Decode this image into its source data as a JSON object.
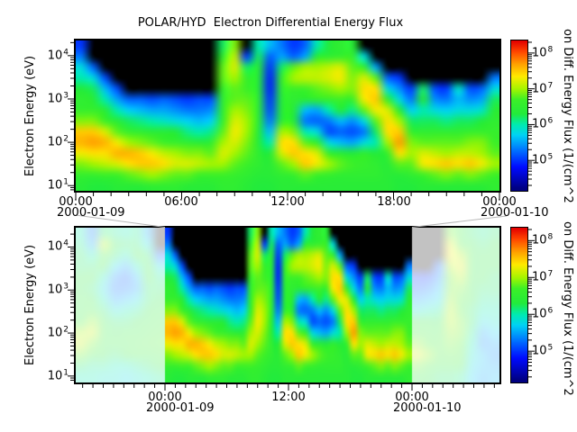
{
  "title": "POLAR/HYD  Electron Differential Energy Flux",
  "axes": {
    "y_label": "Electron Energy (eV)",
    "y_tick_base": "10",
    "y_tick_exponents": [
      "4",
      "3",
      "2",
      "1"
    ],
    "top_x_ticks": [
      "00:00",
      "06:00",
      "12:00",
      "18:00",
      "00:00"
    ],
    "top_x_dates": {
      "left": "2000-01-09",
      "right": "2000-01-10"
    },
    "bottom_x_ticks": [
      "00:00",
      "12:00",
      "00:00"
    ],
    "bottom_x_dates": {
      "left": "2000-01-09",
      "right": "2000-01-10"
    }
  },
  "colorbar": {
    "label": "on Diff. Energy Flux (1/(cm^2",
    "tick_base": "10",
    "tick_exponents": [
      "8",
      "7",
      "6",
      "5"
    ]
  },
  "chart_data": {
    "type": "heatmap",
    "title": "POLAR/HYD  Electron Differential Energy Flux",
    "ylabel": "Electron Energy (eV)",
    "colorbar_label": "on Diff. Energy Flux (1/(cm^2",
    "colorbar_tick_values_log10": [
      8,
      7,
      6,
      5
    ],
    "y_scale": "log",
    "y_tick_values_log10": [
      4,
      3,
      2,
      1
    ],
    "flux_log10_range": [
      4.15,
      8.35
    ],
    "black_below_log10_flux": 4.2,
    "colormap_stops_v_r_g_b": [
      [
        4.2,
        0,
        0,
        130
      ],
      [
        4.8,
        0,
        10,
        255
      ],
      [
        5.3,
        0,
        120,
        255
      ],
      [
        5.7,
        0,
        210,
        245
      ],
      [
        6.0,
        0,
        235,
        175
      ],
      [
        6.3,
        35,
        235,
        60
      ],
      [
        6.7,
        60,
        240,
        40
      ],
      [
        7.0,
        165,
        245,
        0
      ],
      [
        7.35,
        255,
        235,
        0
      ],
      [
        7.7,
        255,
        160,
        0
      ],
      [
        8.05,
        255,
        70,
        0
      ],
      [
        8.35,
        228,
        0,
        0
      ]
    ],
    "energy_log10_rows_top_to_bottom": [
      4.3,
      4.05,
      3.8,
      3.55,
      3.3,
      3.05,
      2.8,
      2.55,
      2.3,
      2.05,
      1.8,
      1.55,
      1.3,
      1.05
    ],
    "panels": {
      "top": {
        "time_range_hours_from_2000_01_09_00": [
          0,
          24
        ],
        "x_tick_labels": [
          "00:00",
          "06:00",
          "12:00",
          "18:00",
          "00:00"
        ],
        "x_dates": [
          "2000-01-09",
          "2000-01-10"
        ],
        "energy_log10_range": [
          0.88,
          4.35
        ],
        "grid_columns_log10_flux": [
          [
            5.0,
            5.3,
            5.8,
            6.0,
            6.3,
            6.5,
            6.6,
            6.9,
            7.5,
            7.6,
            7.3,
            6.9,
            6.6,
            6.4
          ],
          [
            0,
            0,
            5.2,
            5.8,
            6.2,
            6.4,
            6.6,
            6.9,
            7.5,
            7.7,
            7.4,
            7.0,
            6.6,
            6.3
          ],
          [
            0,
            0,
            0,
            5.1,
            5.6,
            6.0,
            6.4,
            6.7,
            7.2,
            7.6,
            7.4,
            7.1,
            6.7,
            6.3
          ],
          [
            0,
            0,
            0,
            0,
            5.1,
            5.5,
            6.0,
            6.4,
            6.8,
            7.3,
            7.6,
            7.2,
            6.7,
            6.4
          ],
          [
            0,
            0,
            0,
            0,
            0,
            5.2,
            5.7,
            6.2,
            6.6,
            7.0,
            7.6,
            7.4,
            6.8,
            6.4
          ],
          [
            0,
            0,
            0,
            0,
            0,
            5.2,
            5.6,
            6.1,
            6.5,
            6.9,
            7.5,
            7.5,
            6.9,
            6.4
          ],
          [
            0,
            0,
            0,
            0,
            0,
            5.1,
            5.5,
            6.0,
            6.4,
            6.8,
            7.3,
            7.5,
            7.0,
            6.5
          ],
          [
            0,
            0,
            0,
            0,
            0,
            5.2,
            5.5,
            5.9,
            6.4,
            6.7,
            7.1,
            7.4,
            6.9,
            6.5
          ],
          [
            0,
            0,
            0,
            0,
            0,
            5.1,
            5.4,
            5.8,
            6.3,
            6.6,
            7.0,
            7.2,
            6.8,
            6.5
          ],
          [
            0,
            0,
            0,
            0,
            0,
            5.0,
            5.3,
            5.7,
            6.1,
            6.5,
            6.9,
            7.2,
            6.8,
            6.4
          ],
          [
            0,
            0,
            0,
            0,
            0,
            5.1,
            5.3,
            5.6,
            6.0,
            6.4,
            6.9,
            7.1,
            6.7,
            6.4
          ],
          [
            0,
            0,
            0,
            0,
            0,
            5.1,
            5.4,
            5.7,
            6.1,
            6.5,
            6.8,
            7.0,
            6.7,
            6.4
          ],
          [
            6.2,
            6.5,
            6.8,
            6.8,
            6.6,
            6.5,
            6.5,
            6.6,
            6.8,
            7.0,
            7.2,
            7.0,
            6.7,
            6.5
          ],
          [
            6.9,
            7.1,
            7.2,
            7.0,
            6.8,
            6.8,
            7.0,
            7.2,
            7.3,
            7.2,
            7.0,
            6.8,
            6.6,
            6.5
          ],
          [
            0,
            5.0,
            6.2,
            6.6,
            6.7,
            6.8,
            6.9,
            7.0,
            7.0,
            6.9,
            6.8,
            6.7,
            6.5,
            6.4
          ],
          [
            6.0,
            6.2,
            6.4,
            6.4,
            6.4,
            6.5,
            6.5,
            6.5,
            6.4,
            6.4,
            6.5,
            6.5,
            6.4,
            6.3
          ],
          [
            5.6,
            5.2,
            5.0,
            4.9,
            4.9,
            5.0,
            5.1,
            5.3,
            5.6,
            6.0,
            6.3,
            6.4,
            6.4,
            6.3
          ],
          [
            5.3,
            5.5,
            6.2,
            6.6,
            6.5,
            6.4,
            6.4,
            6.5,
            7.0,
            7.4,
            7.2,
            6.8,
            6.5,
            6.4
          ],
          [
            5.0,
            5.2,
            6.8,
            7.0,
            6.7,
            6.5,
            6.4,
            6.4,
            6.9,
            7.4,
            7.5,
            7.0,
            6.6,
            6.4
          ],
          [
            5.2,
            5.5,
            7.0,
            7.1,
            6.7,
            6.4,
            5.6,
            5.3,
            6.0,
            6.8,
            7.4,
            7.5,
            6.8,
            6.4
          ],
          [
            6.0,
            6.4,
            7.0,
            7.1,
            6.8,
            6.5,
            5.5,
            5.2,
            5.8,
            6.5,
            7.2,
            7.3,
            6.7,
            6.4
          ],
          [
            6.3,
            6.5,
            7.1,
            7.2,
            6.9,
            6.6,
            6.0,
            5.3,
            5.1,
            5.8,
            6.6,
            7.0,
            6.6,
            6.4
          ],
          [
            6.5,
            6.6,
            7.2,
            7.3,
            7.0,
            6.7,
            6.3,
            5.6,
            5.2,
            5.6,
            6.4,
            6.8,
            6.5,
            6.4
          ],
          [
            6.4,
            6.6,
            6.8,
            6.9,
            6.9,
            6.6,
            6.1,
            5.4,
            5.1,
            5.5,
            6.3,
            6.7,
            6.5,
            6.4
          ],
          [
            0,
            5.8,
            6.6,
            7.2,
            7.4,
            7.3,
            6.8,
            5.8,
            5.3,
            5.8,
            6.5,
            6.6,
            6.5,
            6.4
          ],
          [
            0,
            0,
            5.5,
            6.8,
            7.4,
            7.5,
            7.3,
            6.8,
            6.2,
            6.0,
            6.3,
            6.5,
            6.5,
            6.4
          ],
          [
            0,
            0,
            0,
            5.2,
            5.8,
            6.6,
            7.2,
            7.4,
            7.4,
            7.0,
            6.6,
            6.4,
            6.4,
            6.4
          ],
          [
            0,
            0,
            0,
            5.0,
            5.4,
            5.8,
            6.4,
            7.0,
            7.5,
            7.7,
            7.4,
            6.8,
            6.4,
            6.3
          ],
          [
            0,
            0,
            0,
            0,
            5.0,
            5.3,
            5.7,
            6.2,
            6.6,
            6.9,
            7.0,
            6.8,
            6.5,
            6.3
          ],
          [
            0,
            0,
            0,
            0,
            6.2,
            6.3,
            6.0,
            6.2,
            6.5,
            6.8,
            7.2,
            7.3,
            6.7,
            6.4
          ],
          [
            0,
            0,
            0,
            0,
            5.1,
            5.4,
            5.8,
            6.2,
            6.5,
            6.8,
            7.1,
            7.4,
            6.8,
            6.4
          ],
          [
            0,
            0,
            0,
            0,
            5.0,
            5.3,
            5.7,
            6.1,
            6.5,
            6.8,
            7.0,
            7.5,
            6.9,
            6.4
          ],
          [
            0,
            0,
            0,
            0,
            5.9,
            5.6,
            5.8,
            6.2,
            6.5,
            6.8,
            7.1,
            7.4,
            6.8,
            6.4
          ],
          [
            0,
            0,
            0,
            0,
            5.1,
            5.4,
            5.8,
            6.2,
            6.6,
            6.9,
            7.1,
            7.5,
            6.9,
            6.4
          ],
          [
            0,
            0,
            0,
            0,
            5.2,
            5.5,
            5.9,
            6.3,
            6.6,
            6.9,
            7.0,
            7.3,
            6.8,
            6.4
          ],
          [
            0,
            0,
            0,
            5.3,
            5.8,
            6.2,
            6.4,
            6.5,
            6.6,
            6.7,
            6.8,
            7.0,
            6.7,
            6.5
          ]
        ]
      },
      "bottom": {
        "time_range_hours_from_2000_01_09_00": [
          -8.7,
          32.5
        ],
        "x_tick_labels": [
          "00:00",
          "12:00",
          "00:00"
        ],
        "x_dates": [
          "2000-01-09",
          "2000-01-10"
        ],
        "energy_log10_range": [
          0.85,
          4.45
        ],
        "highlight_range_hours": [
          0,
          24
        ],
        "faded_overlay_outside_highlight": "rgba(255,255,255,0.76)",
        "middle_section_data": "same as top panel grid, compressed",
        "left_section_grid_columns_log10_flux": [
          [
            6.0,
            6.1,
            6.2,
            6.2,
            6.3,
            6.3,
            6.4,
            6.4,
            6.6,
            7.0,
            7.1,
            6.8,
            6.2,
            6.0
          ],
          [
            5.3,
            5.5,
            6.0,
            6.2,
            6.3,
            6.2,
            6.3,
            6.5,
            6.9,
            7.1,
            6.8,
            6.4,
            6.1,
            6.0
          ],
          [
            6.2,
            7.0,
            6.6,
            6.3,
            6.0,
            5.8,
            6.0,
            6.2,
            6.4,
            6.5,
            6.4,
            6.3,
            6.1,
            5.9
          ],
          [
            6.1,
            6.3,
            6.2,
            5.8,
            5.4,
            5.3,
            5.5,
            5.9,
            6.2,
            6.3,
            6.4,
            6.2,
            6.0,
            5.9
          ],
          [
            6.0,
            6.2,
            6.0,
            5.5,
            5.2,
            5.3,
            5.6,
            6.0,
            6.2,
            6.4,
            6.4,
            6.3,
            6.0,
            5.8
          ],
          [
            6.1,
            6.2,
            6.3,
            6.0,
            5.6,
            5.5,
            5.8,
            6.1,
            6.3,
            6.4,
            6.5,
            6.4,
            6.1,
            5.9
          ],
          [
            5.5,
            5.8,
            6.2,
            6.3,
            6.3,
            6.2,
            6.2,
            6.3,
            6.4,
            6.5,
            6.6,
            6.4,
            6.2,
            6.0
          ],
          [
            0,
            0,
            5.2,
            5.8,
            6.1,
            6.2,
            6.3,
            6.4,
            6.5,
            6.6,
            6.7,
            6.5,
            6.3,
            6.1
          ]
        ],
        "right_section_grid_columns_log10_flux": [
          [
            0,
            0,
            0,
            0,
            5.0,
            5.2,
            5.5,
            5.9,
            6.3,
            6.6,
            6.9,
            7.2,
            6.8,
            6.4
          ],
          [
            0,
            0,
            0,
            0,
            5.0,
            5.3,
            5.6,
            6.0,
            6.3,
            6.5,
            6.7,
            6.9,
            6.6,
            6.3
          ],
          [
            0,
            0,
            0,
            5.2,
            5.4,
            5.6,
            5.8,
            6.1,
            6.3,
            6.5,
            6.6,
            6.6,
            6.4,
            6.2
          ],
          [
            6.8,
            7.2,
            7.3,
            7.0,
            6.8,
            6.8,
            6.9,
            7.0,
            7.0,
            6.9,
            6.8,
            6.7,
            6.4,
            6.2
          ],
          [
            6.4,
            6.6,
            7.0,
            7.2,
            7.0,
            6.8,
            6.7,
            6.7,
            6.8,
            6.8,
            6.7,
            6.5,
            6.3,
            6.1
          ],
          [
            6.2,
            6.3,
            6.4,
            6.4,
            6.4,
            6.3,
            6.3,
            6.2,
            6.2,
            6.1,
            6.0,
            5.9,
            5.8,
            5.7
          ],
          [
            6.1,
            6.2,
            6.3,
            6.3,
            6.3,
            6.2,
            6.1,
            6.0,
            5.8,
            5.5,
            5.4,
            5.6,
            5.6,
            5.5
          ],
          [
            6.2,
            6.3,
            6.3,
            6.3,
            6.2,
            6.2,
            6.1,
            6.0,
            5.9,
            5.7,
            5.5,
            5.4,
            5.5,
            5.6
          ]
        ]
      }
    }
  }
}
